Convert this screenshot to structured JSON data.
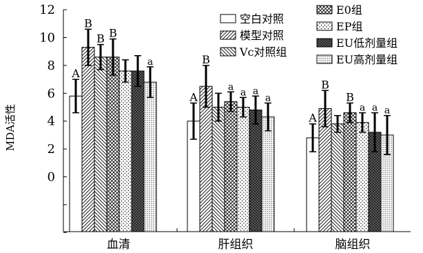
{
  "chart_data": {
    "type": "bar",
    "title": "",
    "xlabel": "",
    "ylabel": "MDA活性",
    "ylim": [
      -4,
      12
    ],
    "yticks": [
      0,
      2,
      4,
      6,
      8,
      10,
      12
    ],
    "categories": [
      "血清",
      "肝组织",
      "脑组织"
    ],
    "legend_position": "top-right",
    "series": [
      {
        "name": "空白对照",
        "pattern": "blank",
        "values": [
          5.8,
          4.0,
          2.8
        ],
        "errors": [
          1.2,
          1.3,
          1.0
        ],
        "labels": [
          "A",
          "A",
          "A"
        ]
      },
      {
        "name": "模型对照",
        "pattern": "diag-right",
        "values": [
          9.3,
          6.5,
          4.9
        ],
        "errors": [
          1.3,
          1.5,
          1.3
        ],
        "labels": [
          "B",
          "B",
          "B"
        ]
      },
      {
        "name": "Vc对照组",
        "pattern": "diag-left",
        "values": [
          8.6,
          5.0,
          3.8
        ],
        "errors": [
          0.9,
          1.0,
          0.6
        ],
        "labels": [
          "B",
          "",
          ""
        ]
      },
      {
        "name": "E0组",
        "pattern": "cross",
        "values": [
          8.6,
          5.4,
          4.6
        ],
        "errors": [
          1.3,
          0.7,
          0.7
        ],
        "labels": [
          "B",
          "a",
          "B"
        ]
      },
      {
        "name": "EP组",
        "pattern": "dots",
        "values": [
          7.6,
          5.0,
          3.9
        ],
        "errors": [
          0.8,
          0.7,
          0.7
        ],
        "labels": [
          "",
          "a",
          "a"
        ]
      },
      {
        "name": "EU低剂量组",
        "pattern": "dense",
        "values": [
          7.6,
          4.8,
          3.2
        ],
        "errors": [
          1.1,
          1.0,
          1.4
        ],
        "labels": [
          "",
          "a",
          "a"
        ]
      },
      {
        "name": "EU高剂量组",
        "pattern": "fine-dots",
        "values": [
          6.8,
          4.3,
          3.0
        ],
        "errors": [
          1.1,
          1.0,
          1.4
        ],
        "labels": [
          "a",
          "a",
          "a"
        ]
      }
    ]
  }
}
